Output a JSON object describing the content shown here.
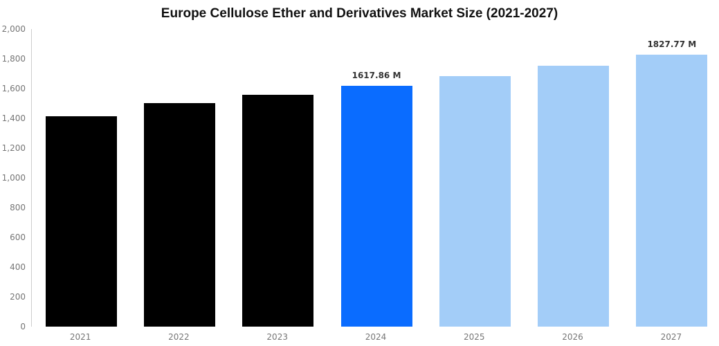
{
  "page": {
    "background_color": "#ffffff"
  },
  "chart_data": {
    "type": "bar",
    "title": "Europe Cellulose Ether and Derivatives Market Size (2021-2027)",
    "categories": [
      "2021",
      "2022",
      "2023",
      "2024",
      "2025",
      "2026",
      "2027"
    ],
    "values": [
      1415,
      1502,
      1556,
      1617.86,
      1685,
      1752,
      1827.77
    ],
    "value_unit": "M",
    "data_labels": [
      null,
      null,
      null,
      "1617.86 M",
      null,
      null,
      "1827.77 M"
    ],
    "bar_colors": [
      "#000000",
      "#000000",
      "#000000",
      "#0a6cff",
      "#a3cdf8",
      "#a3cdf8",
      "#a3cdf8"
    ],
    "series_roles": [
      "historical",
      "historical",
      "historical",
      "current",
      "forecast",
      "forecast",
      "forecast"
    ],
    "xlabel": "",
    "ylabel": "",
    "ylim": [
      0,
      2000
    ],
    "yticks": [
      0,
      200,
      400,
      600,
      800,
      1000,
      1200,
      1400,
      1600,
      1800,
      2000
    ],
    "ytick_labels": [
      "0",
      "200",
      "400",
      "600",
      "800",
      "1,000",
      "1,200",
      "1,400",
      "1,600",
      "1,800",
      "2,000"
    ],
    "grid": false,
    "legend_position": "none"
  },
  "colors": {
    "historical_bar": "#000000",
    "current_year_bar": "#0a6cff",
    "forecast_bar": "#a3cdf8",
    "axis_line": "#cccccc",
    "tick_text": "#757575",
    "value_label_text": "#333333",
    "title_text": "#111111"
  }
}
